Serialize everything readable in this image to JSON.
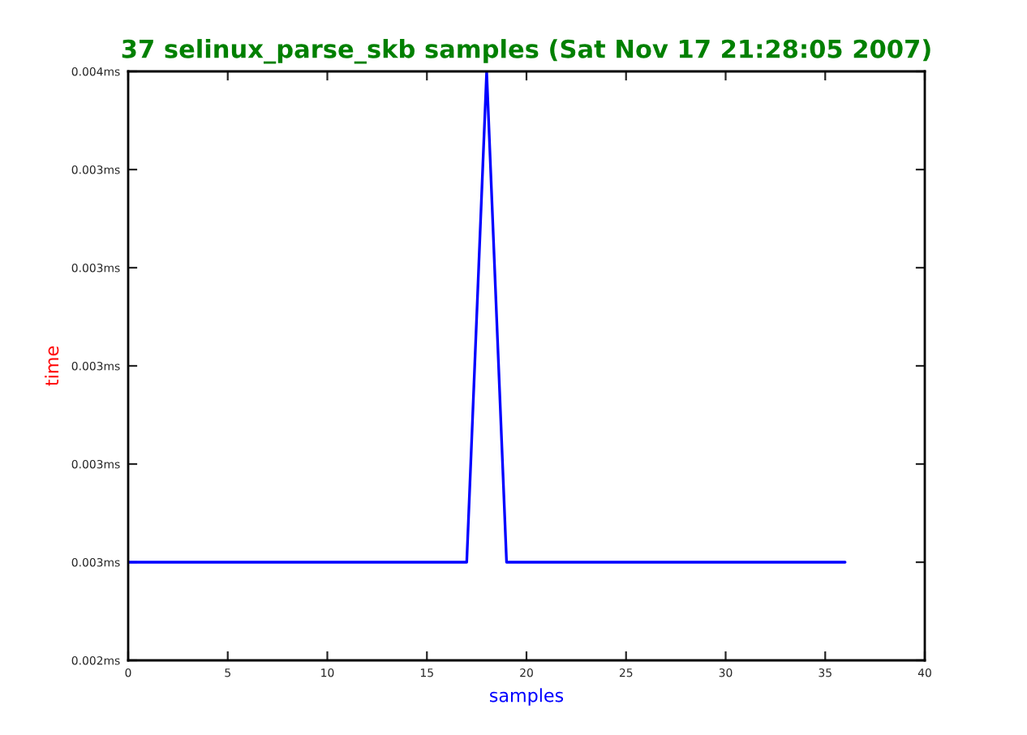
{
  "chart_data": {
    "type": "line",
    "title": "37 selinux_parse_skb samples (Sat Nov 17 21:28:05 2007)",
    "xlabel": "samples",
    "ylabel": "time",
    "x": [
      0,
      1,
      2,
      3,
      4,
      5,
      6,
      7,
      8,
      9,
      10,
      11,
      12,
      13,
      14,
      15,
      16,
      17,
      18,
      19,
      20,
      21,
      22,
      23,
      24,
      25,
      26,
      27,
      28,
      29,
      30,
      31,
      32,
      33,
      34,
      35,
      36
    ],
    "series": [
      {
        "color": "#0000ff",
        "values": [
          0.00267,
          0.00267,
          0.00267,
          0.00267,
          0.00267,
          0.00267,
          0.00267,
          0.00267,
          0.00267,
          0.00267,
          0.00267,
          0.00267,
          0.00267,
          0.00267,
          0.00267,
          0.00267,
          0.00267,
          0.00267,
          0.00357,
          0.00267,
          0.00267,
          0.00267,
          0.00267,
          0.00267,
          0.00267,
          0.00267,
          0.00267,
          0.00267,
          0.00267,
          0.00267,
          0.00267,
          0.00267,
          0.00267,
          0.00267,
          0.00267,
          0.00267,
          0.00267
        ]
      }
    ],
    "xlim": [
      0,
      40
    ],
    "xticks": [
      0,
      5,
      10,
      15,
      20,
      25,
      30,
      35,
      40
    ],
    "ylim": [
      0.00249,
      0.00357
    ],
    "yticks": [
      {
        "value": 0.00249,
        "label": "0.002ms"
      },
      {
        "value": 0.00267,
        "label": "0.003ms"
      },
      {
        "value": 0.00285,
        "label": "0.003ms"
      },
      {
        "value": 0.00303,
        "label": "0.003ms"
      },
      {
        "value": 0.00321,
        "label": "0.003ms"
      },
      {
        "value": 0.00339,
        "label": "0.003ms"
      },
      {
        "value": 0.00357,
        "label": "0.004ms"
      }
    ],
    "grid": false,
    "legend": false,
    "marker": "none",
    "line_style": "solid"
  }
}
